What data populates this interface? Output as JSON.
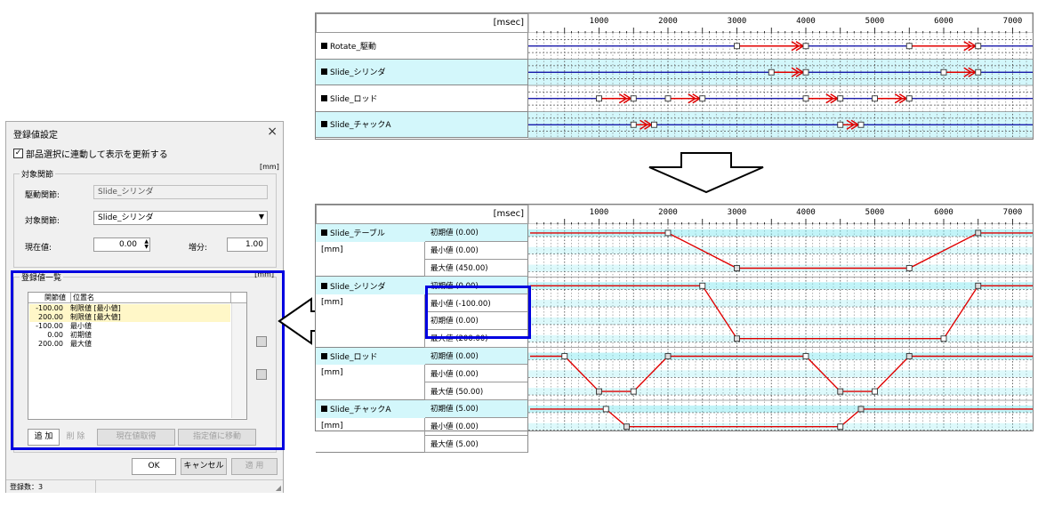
{
  "dialog": {
    "title": "登録値設定",
    "close_glyph": "×",
    "sync_checkbox": {
      "checked_glyph": "✓",
      "label": "部品選択に連動して表示を更新する"
    },
    "unit_label": "[mm]",
    "target_group": {
      "title": "対象関節",
      "drive_label": "駆動関節:",
      "drive_value": "Slide_シリンダ",
      "target_label": "対象関節:",
      "target_value": "Slide_シリンダ",
      "current_label": "現在値:",
      "current_value": "0.00",
      "step_label": "増分:",
      "step_value": "1.00"
    },
    "list_group": {
      "title": "登録値一覧",
      "unit_label": "[mm]",
      "columns": [
        "関節値",
        "位置名"
      ],
      "rows": [
        {
          "value": "-100.00",
          "name": "制限値 [最小値]",
          "highlight": true
        },
        {
          "value": "200.00",
          "name": "制限値 [最大値]",
          "highlight": true
        },
        {
          "value": "-100.00",
          "name": "最小値",
          "highlight": false
        },
        {
          "value": "0.00",
          "name": "初期値",
          "highlight": false
        },
        {
          "value": "200.00",
          "name": "最大値",
          "highlight": false
        }
      ],
      "buttons": {
        "add": "追 加",
        "delete": "削 除",
        "get_current": "現在値取得",
        "move_to": "指定値に移動"
      }
    },
    "ok": "OK",
    "cancel": "キャンセル",
    "apply": "適 用",
    "status": "登録数：3"
  },
  "top_chart": {
    "unit": "[msec]",
    "ticks": [
      "1000",
      "2000",
      "3000",
      "4000",
      "5000",
      "6000",
      "7000"
    ],
    "rows": [
      {
        "name": "Rotate_駆動",
        "cyan": false,
        "moves": [
          [
            3000,
            4000
          ],
          [
            5500,
            6500
          ]
        ]
      },
      {
        "name": "Slide_シリンダ",
        "cyan": true,
        "moves": [
          [
            3500,
            4000
          ],
          [
            6000,
            6500
          ]
        ]
      },
      {
        "name": "Slide_ロッド",
        "cyan": false,
        "moves": [
          [
            1000,
            1500
          ],
          [
            2000,
            2500
          ],
          [
            4000,
            4500
          ],
          [
            5000,
            5500
          ]
        ]
      },
      {
        "name": "Slide_チャックA",
        "cyan": true,
        "moves": [
          [
            1500,
            1800
          ],
          [
            4500,
            4800
          ]
        ]
      }
    ]
  },
  "arrow_down_color": "#000000",
  "bottom_chart": {
    "unit": "[msec]",
    "ticks": [
      "1000",
      "2000",
      "3000",
      "4000",
      "5000",
      "6000",
      "7000"
    ],
    "parts": [
      {
        "name": "Slide_テーブル",
        "unit": "[mm]",
        "labels": [
          "初期値 (0.00)",
          "最小値 (0.00)",
          "最大値 (450.00)"
        ],
        "profile": [
          [
            0,
            0
          ],
          [
            2000,
            0
          ],
          [
            3000,
            2
          ],
          [
            5500,
            2
          ],
          [
            6500,
            0
          ],
          [
            7300,
            0
          ]
        ]
      },
      {
        "name": "Slide_シリンダ",
        "unit": "[mm]",
        "labels": [
          "初期値 (0.00)",
          "最小値 (-100.00)",
          "初期値 (0.00)",
          "最大値 (200.00)"
        ],
        "profile": [
          [
            0,
            0
          ],
          [
            2500,
            0
          ],
          [
            3000,
            3
          ],
          [
            6000,
            3
          ],
          [
            6500,
            0
          ],
          [
            7300,
            0
          ]
        ]
      },
      {
        "name": "Slide_ロッド",
        "unit": "[mm]",
        "labels": [
          "初期値 (0.00)",
          "最小値 (0.00)",
          "最大値 (50.00)"
        ],
        "profile": [
          [
            0,
            0
          ],
          [
            500,
            0
          ],
          [
            1000,
            2
          ],
          [
            1500,
            2
          ],
          [
            2000,
            0
          ],
          [
            4000,
            0
          ],
          [
            4500,
            2
          ],
          [
            5000,
            2
          ],
          [
            5500,
            0
          ],
          [
            7300,
            0
          ]
        ]
      },
      {
        "name": "Slide_チャックA",
        "unit": "[mm]",
        "labels": [
          "初期値 (5.00)",
          "最小値 (0.00)",
          "最大値 (5.00)"
        ],
        "profile": [
          [
            0,
            0
          ],
          [
            1100,
            0
          ],
          [
            1400,
            1
          ],
          [
            4500,
            1
          ],
          [
            4800,
            0
          ],
          [
            7300,
            0
          ]
        ]
      }
    ]
  },
  "highlight_color": "#0000e0"
}
